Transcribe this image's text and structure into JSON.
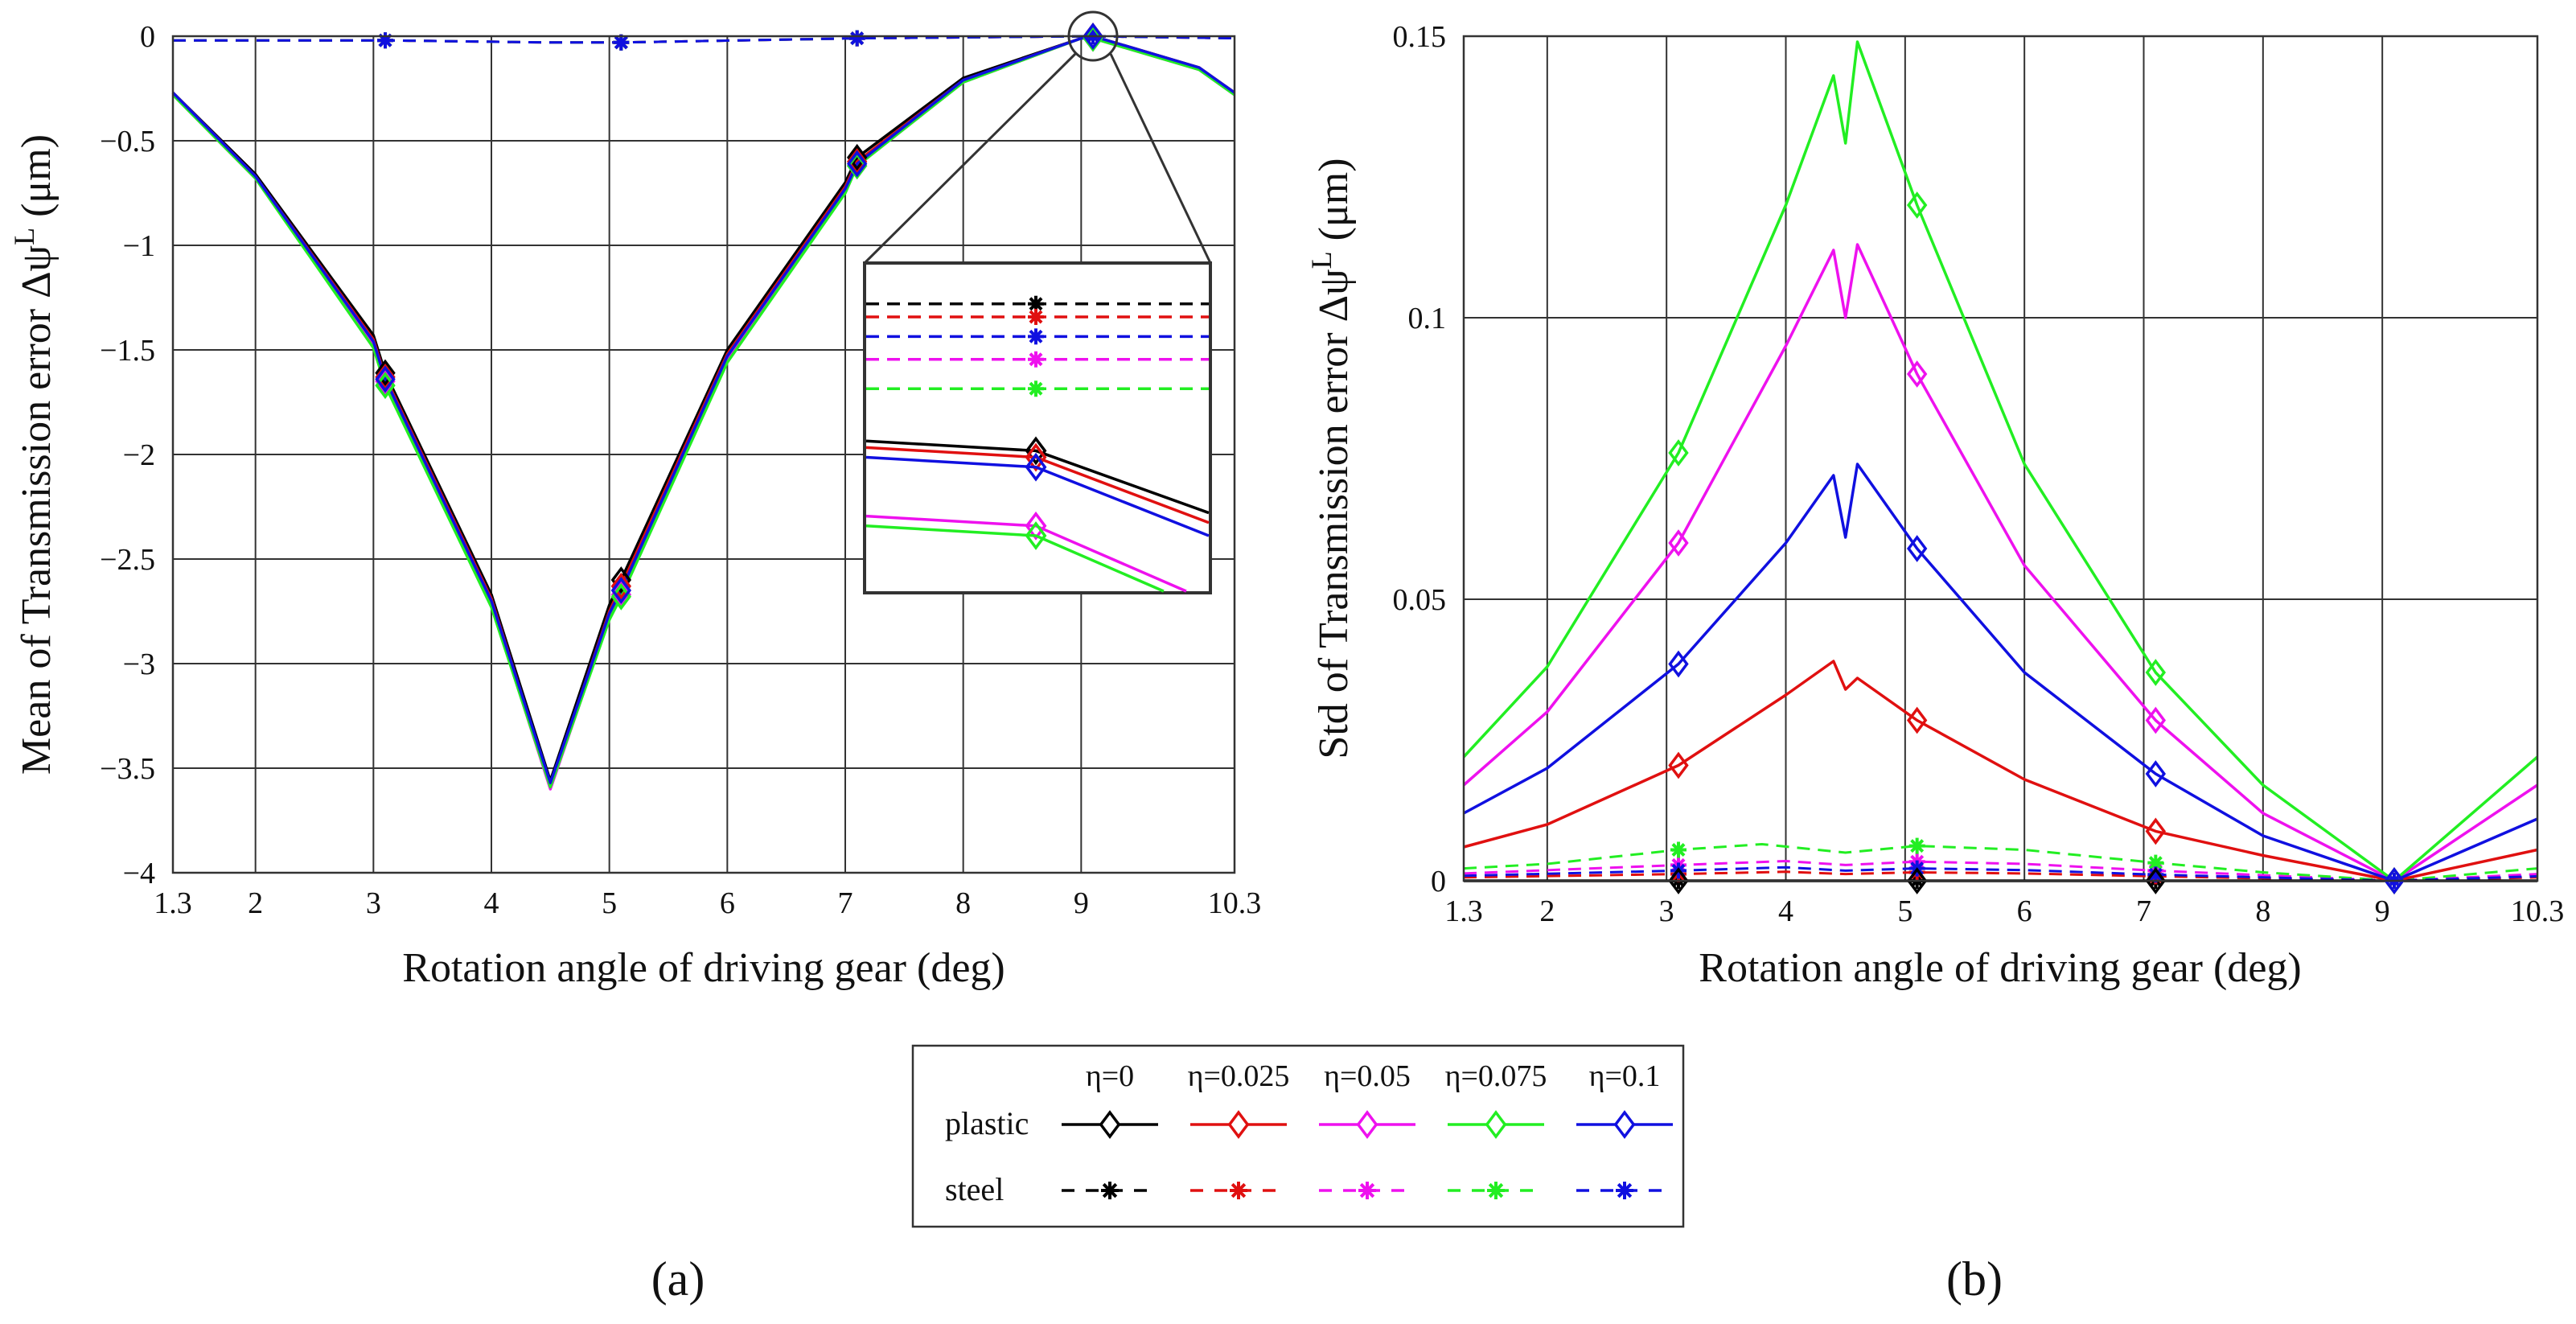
{
  "colors": {
    "eta0": "#000000",
    "eta0025": "#e01010",
    "eta005": "#ee11ee",
    "eta0075": "#22ee22",
    "eta01": "#1010e0",
    "grid": "#333333"
  },
  "legend": {
    "headers": [
      "η=0",
      "η=0.025",
      "η=0.05",
      "η=0.075",
      "η=0.1"
    ],
    "row_labels": [
      "plastic",
      "steel"
    ],
    "plastic_marker": "diamond-icon",
    "steel_marker": "asterisk-icon"
  },
  "chart_data": [
    {
      "panel": "(a)",
      "type": "line",
      "xlabel": "Rotation angle of driving gear (deg)",
      "ylabel": "Mean of  Transmission error Δψ",
      "ylabel_sup": "L",
      "ylabel_unit": " (μm)",
      "xlim": [
        1.3,
        10.3
      ],
      "ylim": [
        -4,
        0
      ],
      "xticks": [
        1.3,
        2,
        3,
        4,
        5,
        6,
        7,
        8,
        9,
        10.3
      ],
      "yticks": [
        0,
        -0.5,
        -1,
        -1.5,
        -2,
        -2.5,
        -3,
        -3.5,
        -4
      ],
      "ytick_labels": [
        "0",
        "−0.5",
        "−1",
        "−1.5",
        "−2",
        "−2.5",
        "−3",
        "−3.5",
        "−4"
      ],
      "grid": true,
      "series": [
        {
          "name": "plastic η=0",
          "color_key": "eta0",
          "style": "solid",
          "marker": "diamond",
          "x": [
            1.3,
            2.0,
            3.0,
            3.1,
            4.0,
            4.5,
            5.0,
            5.1,
            6.0,
            7.0,
            7.1,
            8.0,
            9.0,
            9.1,
            10.0,
            10.3
          ],
          "y": [
            -0.27,
            -0.66,
            -1.43,
            -1.61,
            -2.67,
            -3.56,
            -2.72,
            -2.6,
            -1.5,
            -0.7,
            -0.58,
            -0.2,
            -0.01,
            0.0,
            -0.15,
            -0.27
          ]
        },
        {
          "name": "plastic η=0.025",
          "color_key": "eta0025",
          "style": "solid",
          "marker": "diamond",
          "x": [
            1.3,
            2.0,
            3.0,
            3.1,
            4.0,
            4.5,
            5.0,
            5.1,
            6.0,
            7.0,
            7.1,
            8.0,
            9.0,
            9.1,
            10.0,
            10.3
          ],
          "y": [
            -0.27,
            -0.67,
            -1.45,
            -1.63,
            -2.69,
            -3.58,
            -2.75,
            -2.63,
            -1.52,
            -0.72,
            -0.6,
            -0.21,
            -0.01,
            0.0,
            -0.15,
            -0.27
          ]
        },
        {
          "name": "plastic η=0.05",
          "color_key": "eta005",
          "style": "solid",
          "marker": "diamond",
          "x": [
            1.3,
            2.0,
            3.0,
            3.1,
            4.0,
            4.5,
            5.0,
            5.1,
            6.0,
            7.0,
            7.1,
            8.0,
            9.0,
            9.1,
            10.0,
            10.3
          ],
          "y": [
            -0.28,
            -0.68,
            -1.48,
            -1.65,
            -2.72,
            -3.6,
            -2.78,
            -2.67,
            -1.55,
            -0.74,
            -0.62,
            -0.22,
            -0.01,
            -0.01,
            -0.16,
            -0.28
          ]
        },
        {
          "name": "plastic η=0.075",
          "color_key": "eta0075",
          "style": "solid",
          "marker": "diamond",
          "x": [
            1.3,
            2.0,
            3.0,
            3.1,
            4.0,
            4.5,
            5.0,
            5.1,
            6.0,
            7.0,
            7.1,
            8.0,
            9.0,
            9.1,
            10.0,
            10.3
          ],
          "y": [
            -0.28,
            -0.68,
            -1.49,
            -1.67,
            -2.73,
            -3.59,
            -2.79,
            -2.68,
            -1.56,
            -0.75,
            -0.62,
            -0.22,
            -0.01,
            -0.01,
            -0.16,
            -0.28
          ]
        },
        {
          "name": "plastic η=0.1",
          "color_key": "eta01",
          "style": "solid",
          "marker": "diamond",
          "x": [
            1.3,
            2.0,
            3.0,
            3.1,
            4.0,
            4.5,
            5.0,
            5.1,
            6.0,
            7.0,
            7.1,
            8.0,
            9.0,
            9.1,
            10.0,
            10.3
          ],
          "y": [
            -0.27,
            -0.67,
            -1.46,
            -1.64,
            -2.7,
            -3.57,
            -2.76,
            -2.65,
            -1.53,
            -0.73,
            -0.61,
            -0.21,
            -0.01,
            0.0,
            -0.15,
            -0.27
          ]
        },
        {
          "name": "steel η=0",
          "color_key": "eta0",
          "style": "dashed",
          "marker": "asterisk",
          "x": [
            1.3,
            3.1,
            4.5,
            5.1,
            7.1,
            9.1,
            10.3
          ],
          "y": [
            -0.02,
            -0.02,
            -0.03,
            -0.03,
            -0.01,
            0.0,
            -0.01
          ]
        },
        {
          "name": "steel η=0.025",
          "color_key": "eta0025",
          "style": "dashed",
          "marker": "asterisk",
          "x": [
            1.3,
            3.1,
            4.5,
            5.1,
            7.1,
            9.1,
            10.3
          ],
          "y": [
            -0.02,
            -0.02,
            -0.03,
            -0.03,
            -0.01,
            0.0,
            -0.01
          ]
        },
        {
          "name": "steel η=0.05",
          "color_key": "eta005",
          "style": "dashed",
          "marker": "asterisk",
          "x": [
            1.3,
            3.1,
            4.5,
            5.1,
            7.1,
            9.1,
            10.3
          ],
          "y": [
            -0.02,
            -0.02,
            -0.03,
            -0.03,
            -0.01,
            0.0,
            -0.01
          ]
        },
        {
          "name": "steel η=0.075",
          "color_key": "eta0075",
          "style": "dashed",
          "marker": "asterisk",
          "x": [
            1.3,
            3.1,
            4.5,
            5.1,
            7.1,
            9.1,
            10.3
          ],
          "y": [
            -0.02,
            -0.02,
            -0.03,
            -0.03,
            -0.01,
            0.0,
            -0.01
          ]
        },
        {
          "name": "steel η=0.1",
          "color_key": "eta01",
          "style": "dashed",
          "marker": "asterisk",
          "x": [
            1.3,
            3.1,
            4.5,
            5.1,
            7.1,
            9.1,
            10.3
          ],
          "y": [
            -0.02,
            -0.02,
            -0.03,
            -0.03,
            -0.01,
            0.0,
            -0.01
          ]
        }
      ],
      "marker_x": [
        3.1,
        5.1,
        7.1,
        9.1
      ],
      "inset": {
        "magnifies_x": 9.1,
        "magnifies_y": 0,
        "steel": [
          {
            "color_key": "eta0",
            "y": 0.12
          },
          {
            "color_key": "eta0025",
            "y": 0.16
          },
          {
            "color_key": "eta01",
            "y": 0.22
          },
          {
            "color_key": "eta005",
            "y": 0.29
          },
          {
            "color_key": "eta0075",
            "y": 0.38
          }
        ],
        "plastic": [
          {
            "color_key": "eta0",
            "y": [
              0.54,
              0.57,
              0.76
            ]
          },
          {
            "color_key": "eta0025",
            "y": [
              0.56,
              0.59,
              0.79
            ]
          },
          {
            "color_key": "eta01",
            "y": [
              0.59,
              0.62,
              0.83
            ]
          },
          {
            "color_key": "eta005",
            "y": [
              0.77,
              0.8,
              1.03
            ]
          },
          {
            "color_key": "eta0075",
            "y": [
              0.8,
              0.83,
              1.06
            ]
          }
        ]
      }
    },
    {
      "panel": "(b)",
      "type": "line",
      "xlabel": "Rotation angle of driving gear (deg)",
      "ylabel": "Std of  Transmission error Δψ",
      "ylabel_sup": "L",
      "ylabel_unit": " (μm)",
      "xlim": [
        1.3,
        10.3
      ],
      "ylim": [
        0,
        0.15
      ],
      "xticks": [
        1.3,
        2,
        3,
        4,
        5,
        6,
        7,
        8,
        9,
        10.3
      ],
      "yticks": [
        0,
        0.05,
        0.1,
        0.15
      ],
      "ytick_labels": [
        "0",
        "0.05",
        "0.1",
        "0.15"
      ],
      "grid": true,
      "series": [
        {
          "name": "plastic η=0",
          "color_key": "eta0",
          "style": "solid",
          "marker": "diamond",
          "x": [
            1.3,
            3.1,
            5.1,
            7.1,
            9.1,
            10.3
          ],
          "y": [
            0,
            0,
            0,
            0,
            0,
            0
          ]
        },
        {
          "name": "plastic η=0.025",
          "color_key": "eta0025",
          "style": "solid",
          "marker": "diamond",
          "x": [
            1.3,
            2.0,
            3.1,
            4.0,
            4.4,
            4.5,
            4.6,
            5.1,
            6.0,
            7.1,
            8.0,
            9.1,
            10.3
          ],
          "y": [
            0.006,
            0.01,
            0.0205,
            0.033,
            0.039,
            0.034,
            0.036,
            0.0285,
            0.018,
            0.0088,
            0.0045,
            0.0,
            0.0055
          ]
        },
        {
          "name": "plastic η=0.05",
          "color_key": "eta005",
          "style": "solid",
          "marker": "diamond",
          "x": [
            1.3,
            2.0,
            3.1,
            4.0,
            4.4,
            4.5,
            4.6,
            5.1,
            6.0,
            7.1,
            8.0,
            9.1,
            10.3
          ],
          "y": [
            0.017,
            0.03,
            0.06,
            0.095,
            0.112,
            0.1,
            0.113,
            0.09,
            0.056,
            0.0285,
            0.012,
            0.0,
            0.017
          ]
        },
        {
          "name": "plastic η=0.075",
          "color_key": "eta0075",
          "style": "solid",
          "marker": "diamond",
          "x": [
            1.3,
            2.0,
            3.1,
            4.0,
            4.4,
            4.5,
            4.6,
            5.1,
            6.0,
            7.1,
            8.0,
            9.1,
            10.3
          ],
          "y": [
            0.022,
            0.038,
            0.076,
            0.12,
            0.143,
            0.131,
            0.149,
            0.12,
            0.074,
            0.037,
            0.017,
            0.0,
            0.022
          ]
        },
        {
          "name": "plastic η=0.1",
          "color_key": "eta01",
          "style": "solid",
          "marker": "diamond",
          "x": [
            1.3,
            2.0,
            3.1,
            4.0,
            4.4,
            4.5,
            4.6,
            5.1,
            6.0,
            7.1,
            8.0,
            9.1,
            10.3
          ],
          "y": [
            0.012,
            0.02,
            0.0385,
            0.06,
            0.072,
            0.061,
            0.074,
            0.059,
            0.037,
            0.019,
            0.008,
            0.0,
            0.011
          ]
        },
        {
          "name": "steel η=0",
          "color_key": "eta0",
          "style": "dashed",
          "marker": "asterisk",
          "x": [
            1.3,
            3.1,
            5.1,
            7.1,
            9.1,
            10.3
          ],
          "y": [
            0,
            0,
            0,
            0,
            0,
            0
          ]
        },
        {
          "name": "steel η=0.025",
          "color_key": "eta0025",
          "style": "dashed",
          "marker": "asterisk",
          "x": [
            1.3,
            3.1,
            4.0,
            4.5,
            5.1,
            6.0,
            7.1,
            9.1,
            10.3
          ],
          "y": [
            0.0006,
            0.0012,
            0.0016,
            0.0012,
            0.0015,
            0.0013,
            0.0008,
            0.0,
            0.0006
          ]
        },
        {
          "name": "steel η=0.05",
          "color_key": "eta005",
          "style": "dashed",
          "marker": "asterisk",
          "x": [
            1.3,
            3.1,
            4.0,
            4.5,
            5.1,
            6.0,
            7.1,
            9.1,
            10.3
          ],
          "y": [
            0.0013,
            0.0028,
            0.0035,
            0.0028,
            0.0034,
            0.003,
            0.0018,
            0.0,
            0.0012
          ]
        },
        {
          "name": "steel η=0.075",
          "color_key": "eta0075",
          "style": "dashed",
          "marker": "asterisk",
          "x": [
            1.3,
            2.0,
            3.1,
            3.8,
            4.5,
            5.1,
            6.0,
            7.1,
            8.0,
            9.1,
            10.3
          ],
          "y": [
            0.0022,
            0.003,
            0.0055,
            0.0065,
            0.005,
            0.0062,
            0.0055,
            0.0032,
            0.0015,
            0.0,
            0.0022
          ]
        },
        {
          "name": "steel η=0.1",
          "color_key": "eta01",
          "style": "dashed",
          "marker": "asterisk",
          "x": [
            1.3,
            3.1,
            4.0,
            4.5,
            5.1,
            6.0,
            7.1,
            9.1,
            10.3
          ],
          "y": [
            0.0009,
            0.0018,
            0.0024,
            0.0018,
            0.0022,
            0.0019,
            0.0011,
            0.0,
            0.0008
          ]
        }
      ],
      "marker_x": [
        3.1,
        5.1,
        7.1,
        9.1
      ]
    }
  ]
}
